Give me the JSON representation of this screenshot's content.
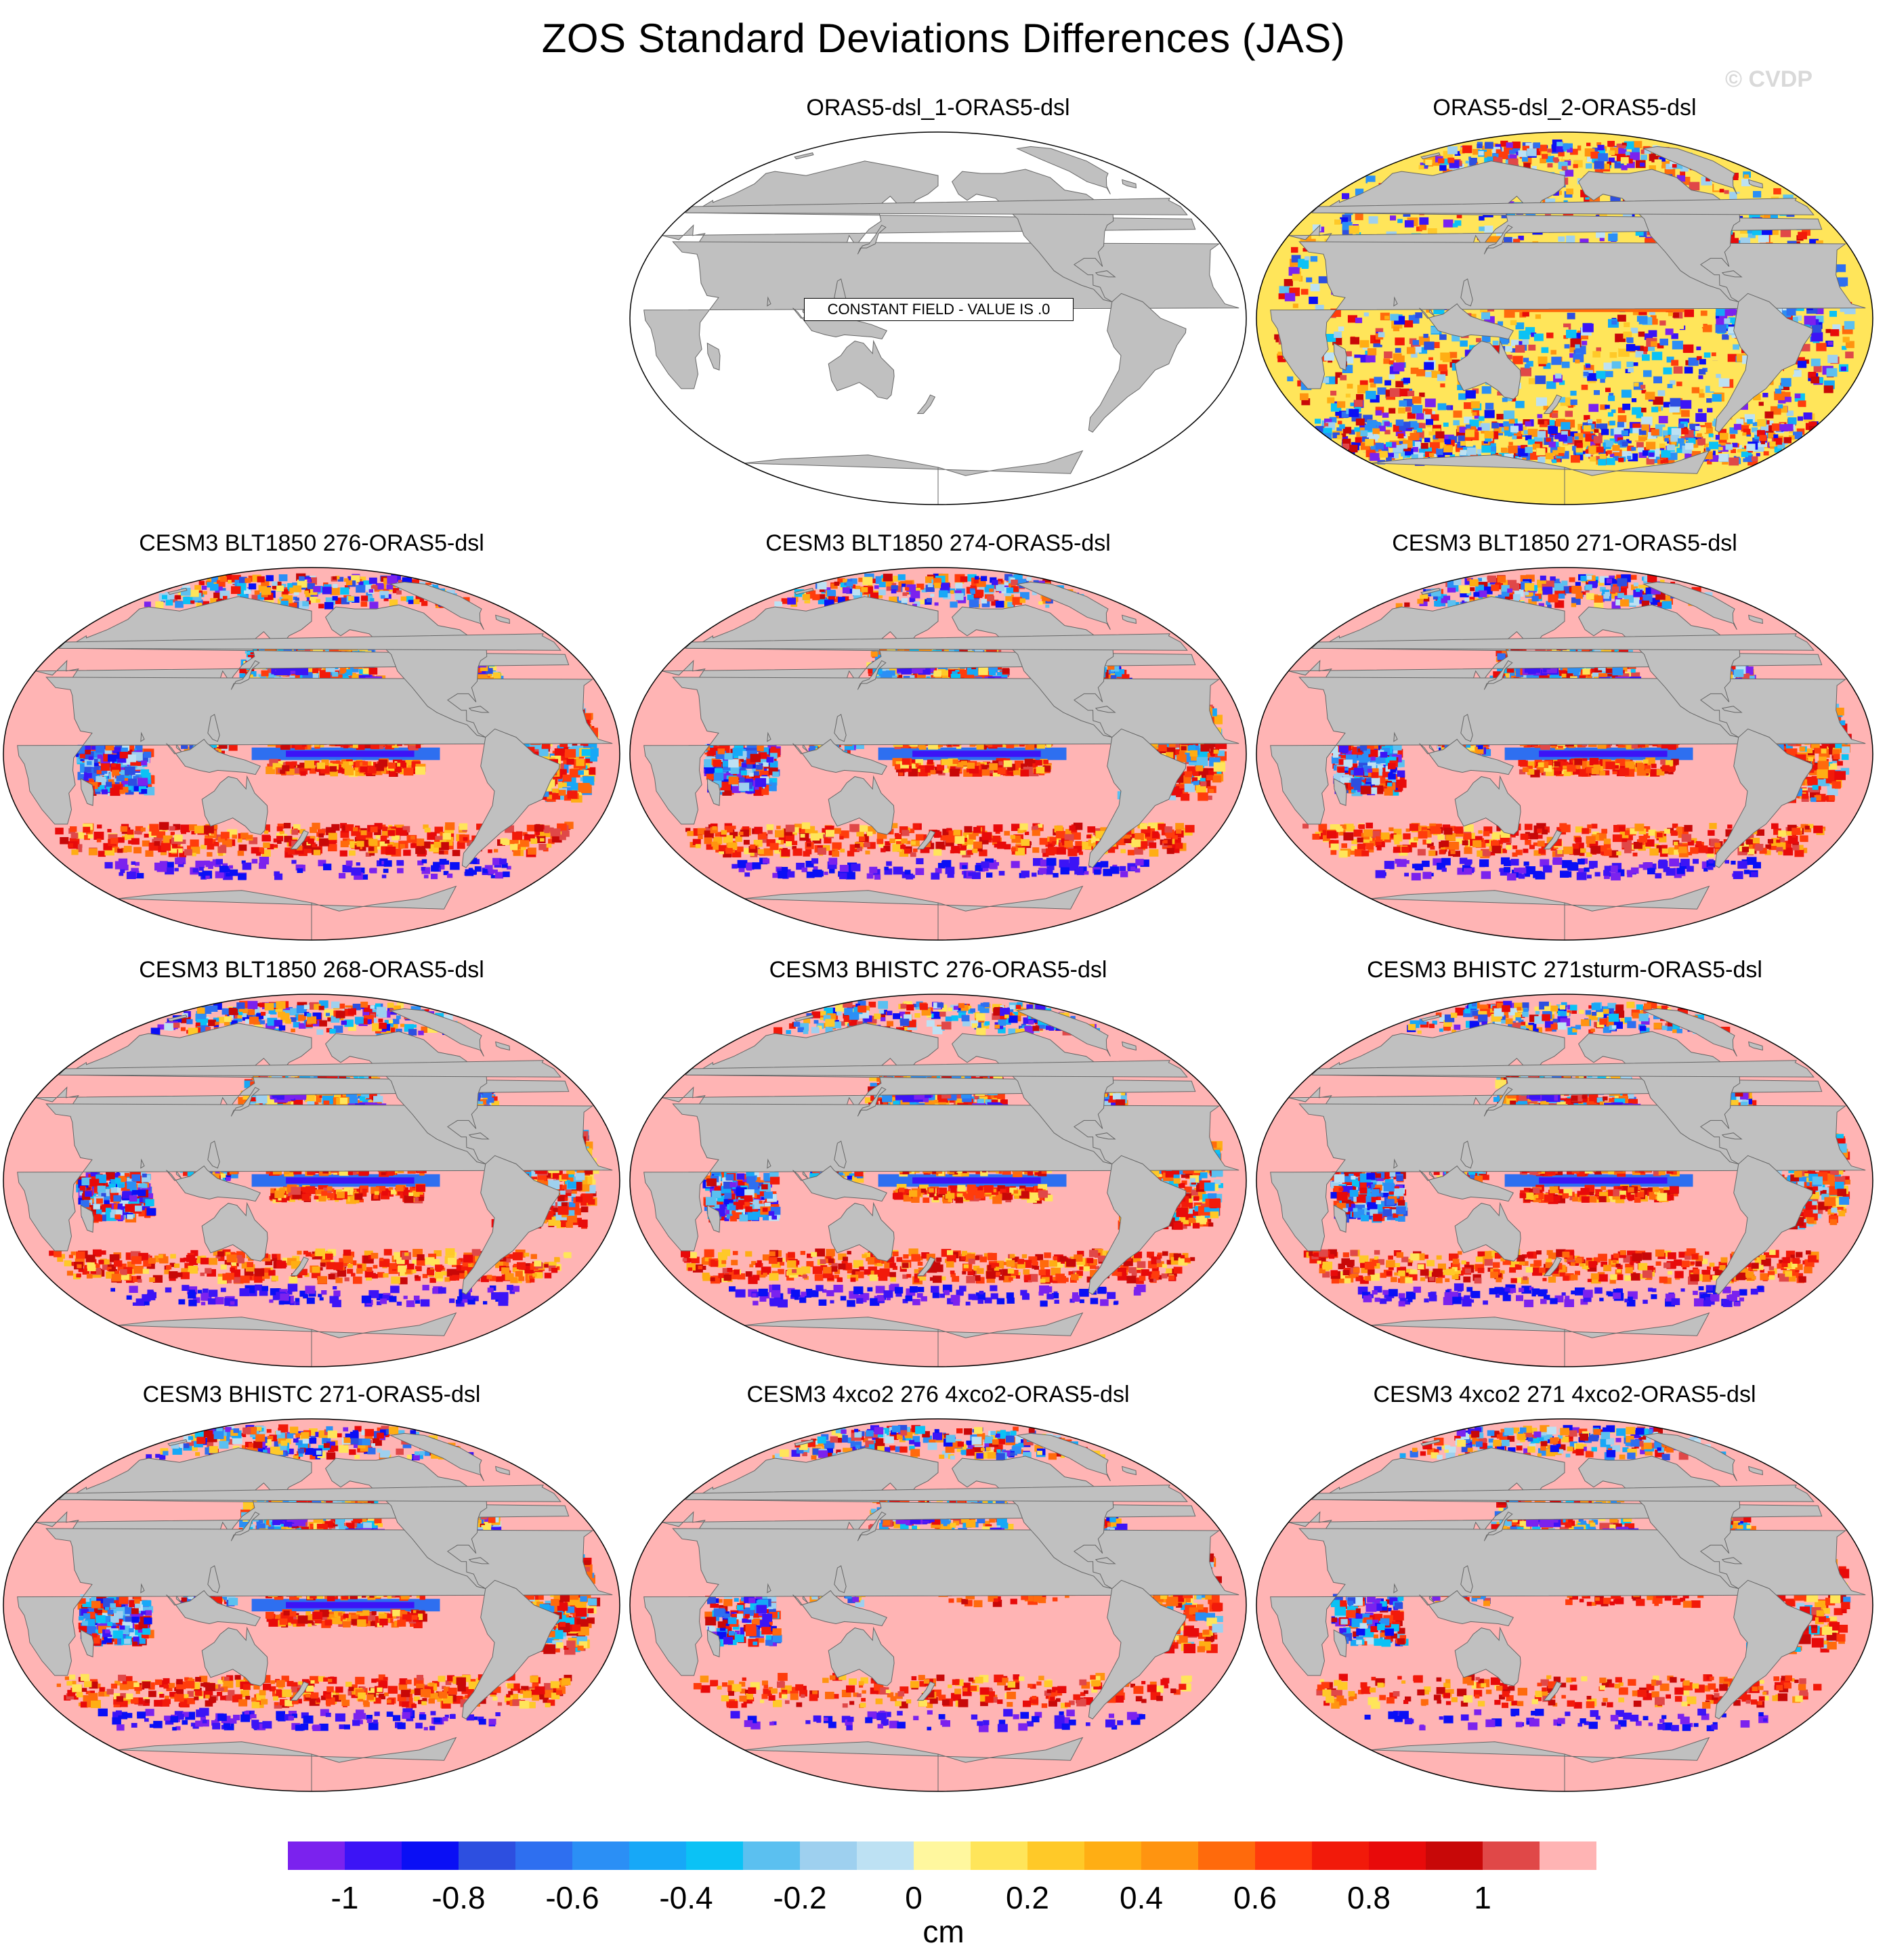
{
  "title": "ZOS Standard Deviations Differences (JAS)",
  "copyright": "© CVDP",
  "land_color": "#c0c0c0",
  "panels": [
    {
      "label": "ORAS5-dsl_1-ORAS5-dsl",
      "note": "CONSTANT FIELD - VALUE IS .0",
      "style": "constant"
    },
    {
      "label": "ORAS5-dsl_2-ORAS5-dsl",
      "style": "mixed"
    },
    {
      "label": "CESM3 BLT1850 276-ORAS5-dsl",
      "style": "model"
    },
    {
      "label": "CESM3 BLT1850 274-ORAS5-dsl",
      "style": "model"
    },
    {
      "label": "CESM3 BLT1850 271-ORAS5-dsl",
      "style": "model"
    },
    {
      "label": "CESM3 BLT1850 268-ORAS5-dsl",
      "style": "model"
    },
    {
      "label": "CESM3 BHISTC 276-ORAS5-dsl",
      "style": "model"
    },
    {
      "label": "CESM3 BHISTC 271sturm-ORAS5-dsl",
      "style": "model"
    },
    {
      "label": "CESM3 BHISTC 271-ORAS5-dsl",
      "style": "model"
    },
    {
      "label": "CESM3 4xco2 276 4xco2-ORAS5-dsl",
      "style": "co2"
    },
    {
      "label": "CESM3 4xco2 271 4xco2-ORAS5-dsl",
      "style": "co2"
    }
  ],
  "colorbar": {
    "colors": [
      "#7b22ee",
      "#3c14f6",
      "#0a0ff5",
      "#2d4fe0",
      "#2e6ff0",
      "#2b8ff5",
      "#17a8f7",
      "#0bc2f5",
      "#5bc0f0",
      "#9ed0ef",
      "#bde1f3",
      "#fff79e",
      "#ffe55a",
      "#ffc928",
      "#ffae14",
      "#ff9410",
      "#ff6a0c",
      "#ff3c0c",
      "#f21a0a",
      "#e80a0a",
      "#c80808",
      "#e04848",
      "#ffb4b4"
    ],
    "ticks": [
      "-1",
      "-0.8",
      "-0.6",
      "-0.4",
      "-0.2",
      "0",
      "0.2",
      "0.4",
      "0.6",
      "0.8",
      "1"
    ],
    "units": "cm"
  }
}
